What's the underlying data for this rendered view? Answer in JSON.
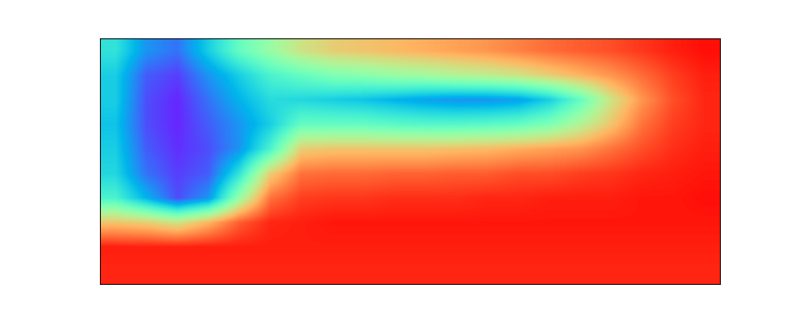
{
  "chart_data": {
    "type": "heatmap",
    "tick_labels": false,
    "color_range": [
      0,
      1
    ],
    "cells": [
      [
        0.35,
        0.2,
        0.15,
        0.3,
        0.45,
        0.55,
        0.65,
        0.7,
        0.72,
        0.74,
        0.76,
        0.78,
        0.8,
        0.83,
        0.86,
        0.88,
        0.9,
        0.93,
        0.96,
        0.98
      ],
      [
        0.3,
        0.12,
        0.08,
        0.2,
        0.3,
        0.4,
        0.45,
        0.5,
        0.52,
        0.55,
        0.57,
        0.6,
        0.62,
        0.65,
        0.7,
        0.75,
        0.8,
        0.86,
        0.92,
        0.96
      ],
      [
        0.3,
        0.1,
        0.05,
        0.15,
        0.25,
        0.33,
        0.32,
        0.3,
        0.28,
        0.25,
        0.22,
        0.2,
        0.2,
        0.22,
        0.3,
        0.45,
        0.65,
        0.8,
        0.9,
        0.95
      ],
      [
        0.28,
        0.1,
        0.05,
        0.12,
        0.2,
        0.3,
        0.45,
        0.45,
        0.45,
        0.43,
        0.42,
        0.42,
        0.43,
        0.45,
        0.5,
        0.6,
        0.72,
        0.85,
        0.92,
        0.95
      ],
      [
        0.3,
        0.12,
        0.06,
        0.1,
        0.2,
        0.4,
        0.7,
        0.72,
        0.72,
        0.72,
        0.72,
        0.73,
        0.74,
        0.76,
        0.78,
        0.8,
        0.85,
        0.9,
        0.94,
        0.96
      ],
      [
        0.32,
        0.15,
        0.08,
        0.12,
        0.35,
        0.7,
        0.85,
        0.86,
        0.86,
        0.87,
        0.87,
        0.88,
        0.88,
        0.9,
        0.9,
        0.92,
        0.93,
        0.95,
        0.96,
        0.97
      ],
      [
        0.4,
        0.25,
        0.1,
        0.2,
        0.55,
        0.85,
        0.92,
        0.93,
        0.93,
        0.94,
        0.94,
        0.94,
        0.95,
        0.95,
        0.96,
        0.96,
        0.96,
        0.97,
        0.97,
        0.98
      ],
      [
        0.72,
        0.7,
        0.65,
        0.75,
        0.88,
        0.95,
        0.96,
        0.97,
        0.97,
        0.97,
        0.97,
        0.97,
        0.97,
        0.97,
        0.97,
        0.97,
        0.97,
        0.97,
        0.97,
        0.97
      ],
      [
        0.96,
        0.96,
        0.96,
        0.96,
        0.96,
        0.96,
        0.96,
        0.96,
        0.96,
        0.96,
        0.96,
        0.96,
        0.96,
        0.96,
        0.96,
        0.96,
        0.96,
        0.96,
        0.96,
        0.96
      ],
      [
        0.95,
        0.95,
        0.95,
        0.95,
        0.95,
        0.95,
        0.95,
        0.95,
        0.95,
        0.95,
        0.95,
        0.95,
        0.95,
        0.95,
        0.95,
        0.95,
        0.95,
        0.95,
        0.95,
        0.95
      ]
    ]
  }
}
